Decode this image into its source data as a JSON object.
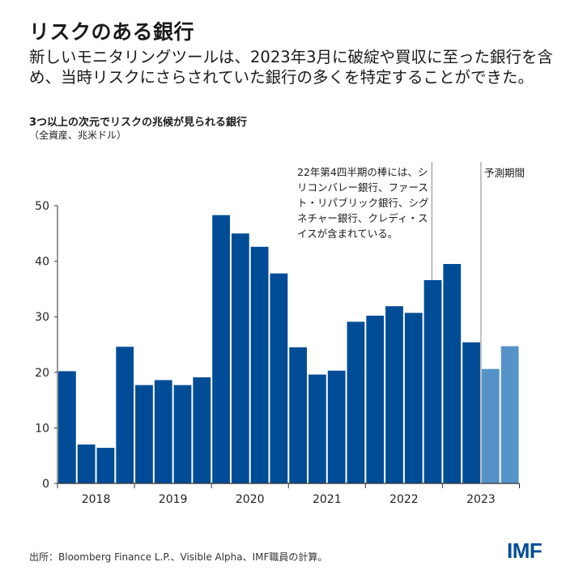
{
  "header": {
    "title": "リスクのある銀行",
    "subtitle": "新しいモニタリングツールは、2023年3月に破綻や買収に至った銀行を含め、当時リスクにさらされていた銀行の多くを特定することができた。"
  },
  "chart_data": {
    "type": "bar",
    "title": "3つ以上の次元でリスクの兆候が見られる銀行",
    "ylabel": "（全資産、兆米ドル）",
    "xlabel": "",
    "ylim": [
      0,
      50
    ],
    "yticks": [
      0,
      10,
      20,
      30,
      40,
      50
    ],
    "year_labels": [
      "2018",
      "2019",
      "2020",
      "2021",
      "2022",
      "2023"
    ],
    "categories": [
      "2018Q1",
      "2018Q2",
      "2018Q3",
      "2018Q4",
      "2019Q1",
      "2019Q2",
      "2019Q3",
      "2019Q4",
      "2020Q1",
      "2020Q2",
      "2020Q3",
      "2020Q4",
      "2021Q1",
      "2021Q2",
      "2021Q3",
      "2021Q4",
      "2022Q1",
      "2022Q2",
      "2022Q3",
      "2022Q4",
      "2023Q1",
      "2023Q2",
      "2023Q3",
      "2023Q4"
    ],
    "values": [
      20.2,
      7.0,
      6.4,
      24.6,
      17.7,
      18.6,
      17.7,
      19.1,
      48.3,
      45.0,
      42.6,
      37.8,
      24.5,
      19.6,
      20.3,
      29.1,
      30.2,
      31.9,
      30.7,
      36.6,
      39.5,
      25.4,
      20.6,
      24.7
    ],
    "forecast_from_index": 22,
    "colors": {
      "actual": "#004c97",
      "forecast": "#5592c8"
    },
    "grid": false,
    "annotations": {
      "q4_2022": "22年第4四半期の棒には、シリコンバレー銀行、ファースト・リパブリック銀行、シグネチャー銀行、クレディ・スイスが含まれている。",
      "forecast": "予測期間"
    }
  },
  "footer": {
    "source": "出所：Bloomberg Finance L.P.、Visible Alpha、IMF職員の計算。",
    "logo": "IMF"
  }
}
